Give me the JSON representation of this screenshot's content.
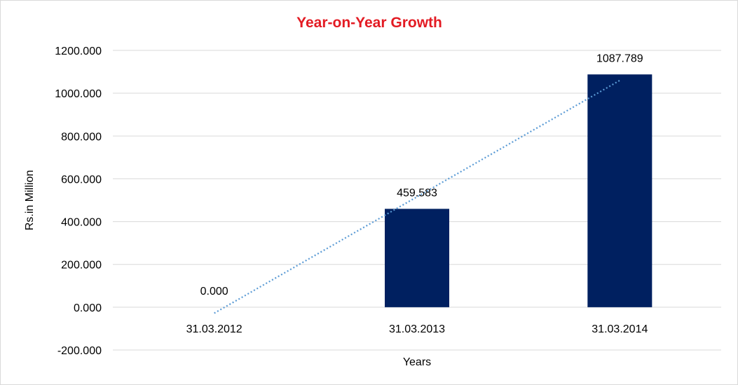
{
  "chart_data": {
    "type": "bar",
    "title": "Year-on-Year Growth",
    "xlabel": "Years",
    "ylabel": "Rs.in Million",
    "categories": [
      "31.03.2012",
      "31.03.2013",
      "31.03.2014"
    ],
    "values": [
      0.0,
      459.583,
      1087.789
    ],
    "data_labels": [
      "0.000",
      "459.583",
      "1087.789"
    ],
    "ylim": [
      -200,
      1200
    ],
    "yticks": [
      -200,
      0,
      200,
      400,
      600,
      800,
      1000,
      1200
    ],
    "ytick_labels": [
      "-200.000",
      "0.000",
      "200.000",
      "400.000",
      "600.000",
      "800.000",
      "1000.000",
      "1200.000"
    ],
    "grid": true,
    "legend": "none",
    "trendline": {
      "type": "linear",
      "style": "dotted"
    },
    "colors": {
      "bar": "#002060",
      "title": "#e31b23",
      "trendline": "#5b9bd5",
      "grid": "#d9d9d9"
    }
  }
}
